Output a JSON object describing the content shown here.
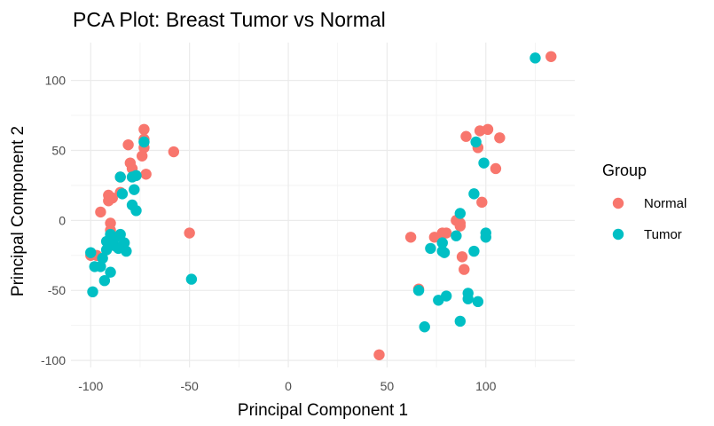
{
  "chart_data": {
    "type": "scatter",
    "title": "PCA Plot: Breast Tumor vs Normal",
    "xlabel": "Principal Component 1",
    "ylabel": "Principal Component 2",
    "xlim": [
      -110,
      145
    ],
    "ylim": [
      -105,
      127
    ],
    "xticks": [
      -100,
      -50,
      0,
      50,
      100
    ],
    "yticks": [
      -100,
      -50,
      0,
      50,
      100
    ],
    "grid": true,
    "legend": {
      "title": "Group",
      "position": "right"
    },
    "series": [
      {
        "name": "Normal",
        "color": "#F8766D",
        "points": [
          [
            -73,
            65
          ],
          [
            -73,
            58
          ],
          [
            -73,
            52
          ],
          [
            -74,
            46
          ],
          [
            -72,
            33
          ],
          [
            -81,
            54
          ],
          [
            -80,
            41
          ],
          [
            -79,
            37
          ],
          [
            -58,
            49
          ],
          [
            -85,
            31
          ],
          [
            -91,
            18
          ],
          [
            -91,
            14
          ],
          [
            -89,
            16
          ],
          [
            -85,
            20
          ],
          [
            -95,
            6
          ],
          [
            -90,
            -2
          ],
          [
            -90,
            -7
          ],
          [
            -100,
            -25
          ],
          [
            -97,
            -25
          ],
          [
            -50,
            -9
          ],
          [
            101,
            65
          ],
          [
            97,
            64
          ],
          [
            107,
            59
          ],
          [
            90,
            60
          ],
          [
            96,
            52
          ],
          [
            105,
            37
          ],
          [
            98,
            13
          ],
          [
            87,
            -4
          ],
          [
            85,
            0
          ],
          [
            87,
            -2
          ],
          [
            80,
            -9
          ],
          [
            78,
            -9
          ],
          [
            74,
            -12
          ],
          [
            62,
            -12
          ],
          [
            89,
            -35
          ],
          [
            88,
            -26
          ],
          [
            66,
            -49
          ],
          [
            46,
            -96
          ],
          [
            133,
            117
          ]
        ]
      },
      {
        "name": "Tumor",
        "color": "#00BFC4",
        "points": [
          [
            -73,
            56
          ],
          [
            -77,
            32
          ],
          [
            -79,
            31
          ],
          [
            -85,
            31
          ],
          [
            -78,
            22
          ],
          [
            -79,
            11
          ],
          [
            -77,
            7
          ],
          [
            -84,
            19
          ],
          [
            -90,
            -10
          ],
          [
            -88,
            -13
          ],
          [
            -92,
            -15
          ],
          [
            -88,
            -18
          ],
          [
            -85,
            -10
          ],
          [
            -83,
            -16
          ],
          [
            -86,
            -20
          ],
          [
            -89,
            -16
          ],
          [
            -92,
            -21
          ],
          [
            -82,
            -22
          ],
          [
            -94,
            -27
          ],
          [
            -100,
            -23
          ],
          [
            -98,
            -33
          ],
          [
            -95,
            -33
          ],
          [
            -93,
            -43
          ],
          [
            -90,
            -37
          ],
          [
            -99,
            -51
          ],
          [
            -49,
            -42
          ],
          [
            125,
            116
          ],
          [
            95,
            56
          ],
          [
            99,
            41
          ],
          [
            94,
            19
          ],
          [
            100,
            -9
          ],
          [
            100,
            -12
          ],
          [
            94,
            -22
          ],
          [
            87,
            5
          ],
          [
            85,
            -11
          ],
          [
            78,
            -16
          ],
          [
            78,
            -22
          ],
          [
            79,
            -23
          ],
          [
            72,
            -20
          ],
          [
            66,
            -50
          ],
          [
            76,
            -57
          ],
          [
            80,
            -54
          ],
          [
            91,
            -52
          ],
          [
            91,
            -56
          ],
          [
            96,
            -58
          ],
          [
            69,
            -76
          ],
          [
            87,
            -72
          ]
        ]
      }
    ]
  }
}
